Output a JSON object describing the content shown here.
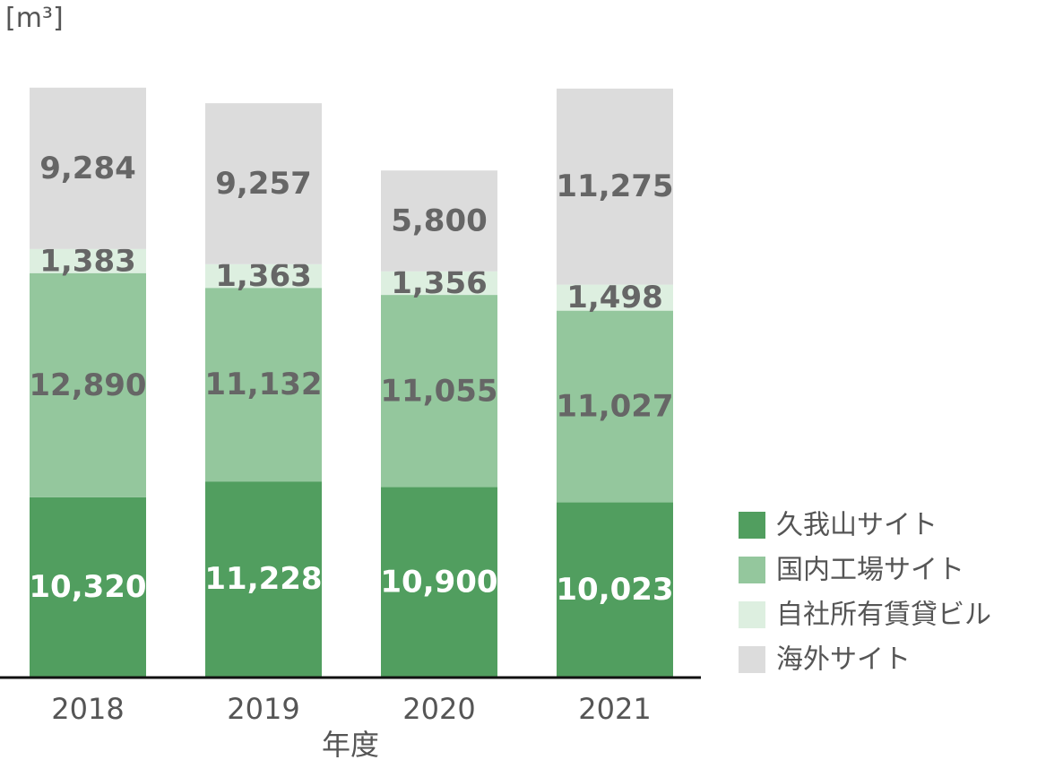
{
  "chart_data": {
    "type": "bar",
    "stacked": true,
    "unit_label": "[m³]",
    "xlabel": "年度",
    "ylabel": "",
    "categories": [
      "2018",
      "2019",
      "2020",
      "2021"
    ],
    "series": [
      {
        "name": "久我山サイト",
        "color": "#519e5f",
        "label_color": "#ffffff",
        "values": [
          10320,
          11228,
          10900,
          10023
        ],
        "labels": [
          "10,320",
          "11,228",
          "10,900",
          "10,023"
        ]
      },
      {
        "name": "国内工場サイト",
        "color": "#94c79d",
        "label_color": "#666666",
        "values": [
          12890,
          11132,
          11055,
          11027
        ],
        "labels": [
          "12,890",
          "11,132",
          "11,055",
          "11,027"
        ]
      },
      {
        "name": "自社所有賃貸ビル",
        "color": "#ddefe0",
        "label_color": "#666666",
        "values": [
          1383,
          1363,
          1356,
          1498
        ],
        "labels": [
          "1,383",
          "1,363",
          "1,356",
          "1,498"
        ]
      },
      {
        "name": "海外サイト",
        "color": "#dcdcdc",
        "label_color": "#666666",
        "values": [
          9284,
          9257,
          5800,
          11275
        ],
        "labels": [
          "9,284",
          "9,257",
          "5,800",
          "11,275"
        ]
      }
    ],
    "ylim": [
      0,
      34000
    ],
    "grid": false,
    "legend_position": "bottom-right"
  }
}
